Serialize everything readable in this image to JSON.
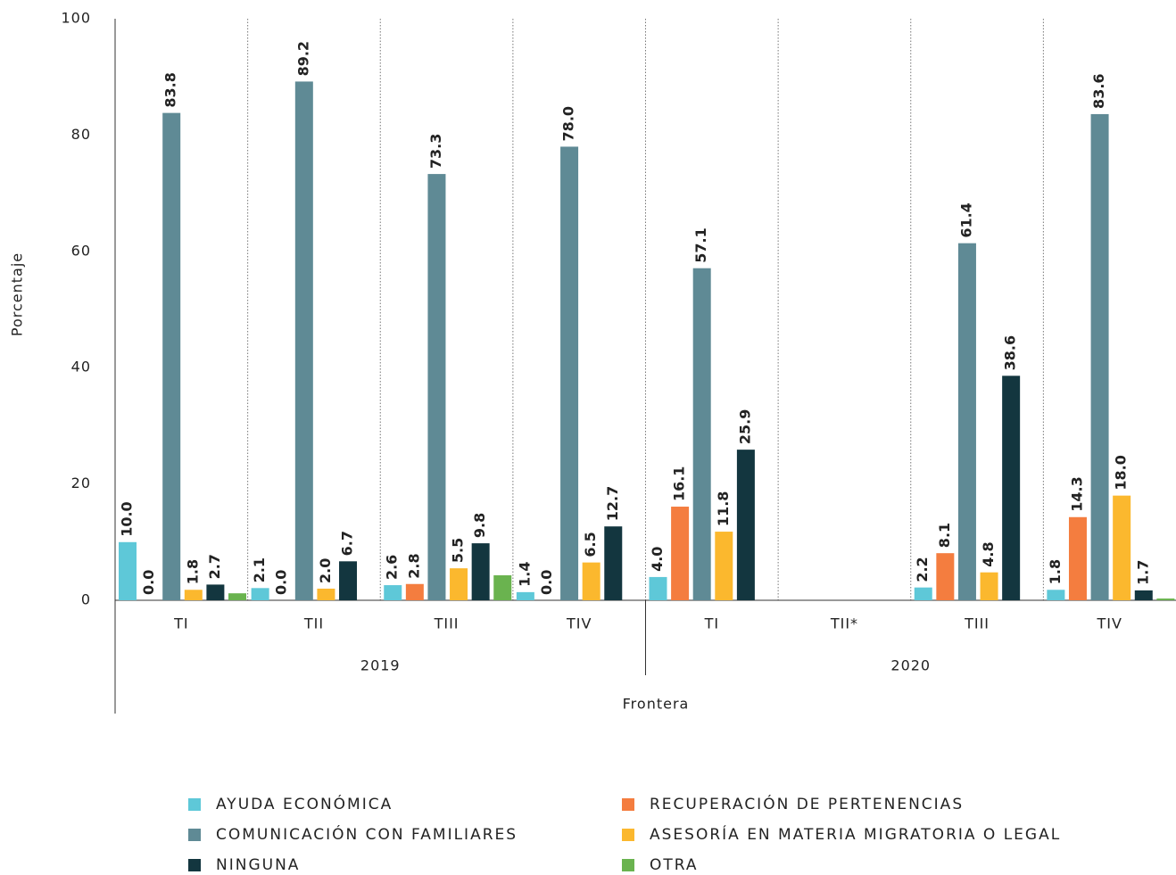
{
  "chart_data": {
    "type": "bar",
    "y_label": "Porcentaje",
    "x_label": "Frontera",
    "categories": [
      "TI",
      "TII",
      "TIII",
      "TIV",
      "TI",
      "TII*",
      "TIII",
      "TIV"
    ],
    "groups": [
      {
        "name": "2019",
        "count": 4
      },
      {
        "name": "2020",
        "count": 4
      }
    ],
    "ylim": [
      0,
      100
    ],
    "yticks": [
      0,
      20,
      40,
      60,
      80,
      100
    ],
    "series": [
      {
        "name": "AYUDA ECONÓMICA",
        "color": "#5ec8d8",
        "values": [
          10.0,
          2.1,
          2.6,
          1.4,
          4.0,
          null,
          2.2,
          1.8
        ],
        "value_labels": [
          "10.0",
          "2.1",
          "2.6",
          "1.4",
          "4.0",
          null,
          "2.2",
          "1.8"
        ]
      },
      {
        "name": "RECUPERACIÓN DE PERTENENCIAS",
        "color": "#f47d3f",
        "values": [
          0.0,
          0.0,
          2.8,
          0.0,
          16.1,
          null,
          8.1,
          14.3
        ],
        "value_labels": [
          "0.0",
          "0.0",
          "2.8",
          "0.0",
          "16.1",
          null,
          "8.1",
          "14.3"
        ]
      },
      {
        "name": "COMUNICACIÓN CON FAMILIARES",
        "color": "#5f8a95",
        "values": [
          83.8,
          89.2,
          73.3,
          78.0,
          57.1,
          null,
          61.4,
          83.6
        ],
        "value_labels": [
          "83.8",
          "89.2",
          "73.3",
          "78.0",
          "57.1",
          null,
          "61.4",
          "83.6"
        ]
      },
      {
        "name": "ASESORÍA EN MATERIA MIGRATORIA O LEGAL",
        "color": "#fbb82e",
        "values": [
          1.8,
          2.0,
          5.5,
          6.5,
          11.8,
          null,
          4.8,
          18.0
        ],
        "value_labels": [
          "1.8",
          "2.0",
          "5.5",
          "6.5",
          "11.8",
          null,
          "4.8",
          "18.0"
        ]
      },
      {
        "name": "NINGUNA",
        "color": "#13363f",
        "values": [
          2.7,
          6.7,
          9.8,
          12.7,
          25.9,
          null,
          38.6,
          1.7
        ],
        "value_labels": [
          "2.7",
          "6.7",
          "9.8",
          "12.7",
          "25.9",
          null,
          "38.6",
          "1.7"
        ]
      },
      {
        "name": "OTRA",
        "color": "#6ab34f",
        "values": [
          1.2,
          null,
          4.3,
          null,
          null,
          null,
          null,
          0.3
        ],
        "value_labels": [
          null,
          null,
          null,
          null,
          null,
          null,
          null,
          null
        ]
      }
    ]
  }
}
